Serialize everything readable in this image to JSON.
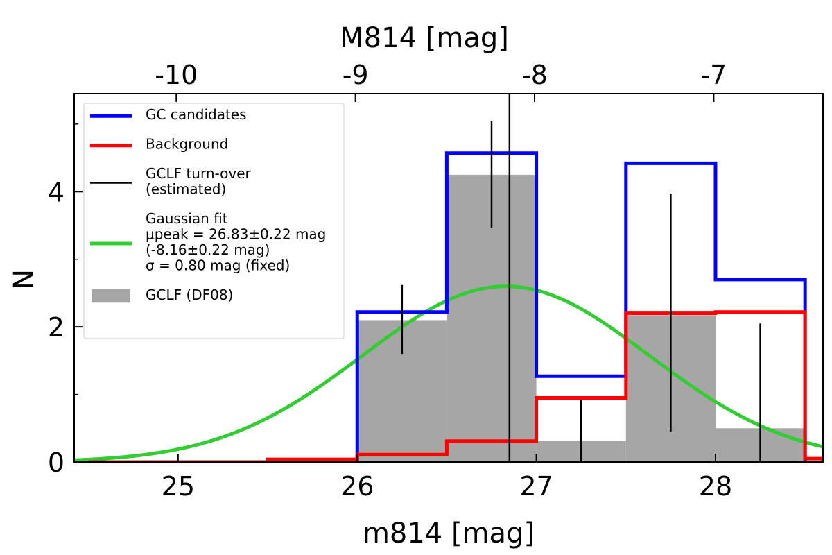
{
  "chart_data": {
    "type": "histogram",
    "xlabel": "m814 [mag]",
    "x2label": "M814 [mag]",
    "ylabel": "N",
    "xlim": [
      24.42,
      28.6
    ],
    "ylim": [
      0,
      5.45
    ],
    "distance_modulus": 34.99,
    "x_ticks": [
      25,
      26,
      27,
      28
    ],
    "x_tick_labels": [
      "25",
      "26",
      "27",
      "28"
    ],
    "x2_ticks": [
      -10,
      -9,
      -8,
      -7
    ],
    "x2_tick_labels": [
      "-10",
      "-9",
      "-8",
      "-7"
    ],
    "y_ticks": [
      0,
      2,
      4
    ],
    "y_tick_labels": [
      "0",
      "2",
      "4"
    ],
    "y_minor_ticks": [
      1,
      3,
      5
    ],
    "bin_edges": [
      24.5,
      25.0,
      25.5,
      26.0,
      26.5,
      27.0,
      27.5,
      28.0,
      28.5,
      28.6
    ],
    "series": [
      {
        "name": "GCLF (DF08)",
        "style": "bar",
        "color": "#a6a6a6",
        "edges": [
          26.0,
          26.5,
          27.0,
          27.5,
          28.0,
          28.5
        ],
        "values": [
          2.1,
          4.25,
          0.31,
          2.17,
          0.5
        ]
      },
      {
        "name": "GC candidates",
        "style": "step",
        "color": "#0000ff",
        "edges": [
          26.0,
          26.5,
          27.0,
          27.5,
          28.0,
          28.5
        ],
        "values": [
          2.22,
          4.57,
          1.27,
          4.42,
          2.7
        ]
      },
      {
        "name": "Background",
        "style": "step",
        "color": "#ff0000",
        "edges": [
          24.5,
          25.0,
          25.5,
          26.0,
          26.5,
          27.0,
          27.5,
          28.0,
          28.5,
          28.6
        ],
        "values": [
          0.0,
          0.0,
          0.04,
          0.11,
          0.31,
          0.95,
          2.2,
          2.22,
          0.05
        ]
      }
    ],
    "error_bars": [
      {
        "x": 26.25,
        "low": 1.6,
        "high": 2.62
      },
      {
        "x": 26.75,
        "low": 3.47,
        "high": 5.05
      },
      {
        "x": 27.25,
        "low": 0.0,
        "high": 0.92
      },
      {
        "x": 27.75,
        "low": 0.45,
        "high": 3.97
      },
      {
        "x": 28.25,
        "low": 0.0,
        "high": 2.05
      }
    ],
    "turnover": {
      "name": "GCLF turn-over (estimated)",
      "x": 26.85,
      "color": "#000000"
    },
    "gaussian_fit": {
      "name": "Gaussian fit",
      "mu": 26.83,
      "mu_err": 0.22,
      "mu_abs": -8.16,
      "sigma": 0.8,
      "amplitude": 2.6,
      "color": "#33cc33"
    },
    "legend": {
      "position": "upper-left",
      "entries": [
        {
          "lines": [
            "GC candidates"
          ],
          "color": "#0000ff",
          "kind": "line"
        },
        {
          "lines": [
            "Background"
          ],
          "color": "#ff0000",
          "kind": "line"
        },
        {
          "lines": [
            "GCLF turn-over",
            "(estimated)"
          ],
          "color": "#000000",
          "kind": "thinline"
        },
        {
          "lines": [
            "Gaussian fit",
            "μpeak = 26.83±0.22 mag",
            "(-8.16±0.22 mag)",
            "σ = 0.80 mag (fixed)"
          ],
          "color": "#33cc33",
          "kind": "line"
        },
        {
          "lines": [
            "GCLF (DF08)"
          ],
          "color": "#a6a6a6",
          "kind": "patch"
        }
      ]
    }
  }
}
